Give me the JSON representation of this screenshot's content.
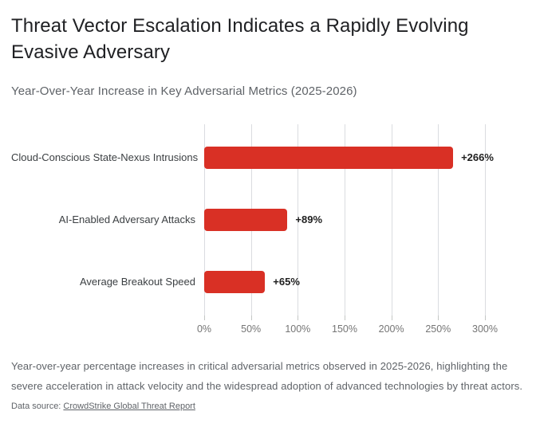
{
  "header": {
    "title_lines": [
      "Threat Vector Escalation Indicates a Rapidly Evolving",
      "Evasive Adversary"
    ],
    "subtitle": "Year-Over-Year Increase in Key Adversarial Metrics (2025-2026)"
  },
  "chart_data": {
    "type": "bar",
    "orientation": "horizontal",
    "title": "Year-Over-Year Increase in Key Adversarial Metrics (2025-2026)",
    "categories": [
      "Cloud-Conscious State-Nexus Intrusions",
      "AI-Enabled Adversary Attacks",
      "Average Breakout Speed"
    ],
    "values": [
      266,
      89,
      65
    ],
    "value_labels": [
      "+266%",
      "+89%",
      "+65%"
    ],
    "x_ticks": [
      "0%",
      "50%",
      "100%",
      "150%",
      "200%",
      "250%",
      "300%"
    ],
    "x_tick_values": [
      0,
      50,
      100,
      150,
      200,
      250,
      300
    ],
    "xlim": [
      0,
      300
    ],
    "grid": true,
    "legend": "none"
  },
  "footer": {
    "description": "Year-over-year percentage increases in critical adversarial metrics observed in 2025-2026, highlighting the severe acceleration in attack velocity and the widespread adoption of advanced technologies by threat actors.",
    "source_label": "Data source: ",
    "source_link": "CrowdStrike Global Threat Report"
  },
  "colors": {
    "bar": "#d93025",
    "title": "#202124",
    "subtitle": "#5f6368",
    "gridline": "#dadce0",
    "tick": "#c4c7c5",
    "tick_label": "#757575",
    "category_label": "#3c4043",
    "value_label": "#1f1f1f"
  }
}
